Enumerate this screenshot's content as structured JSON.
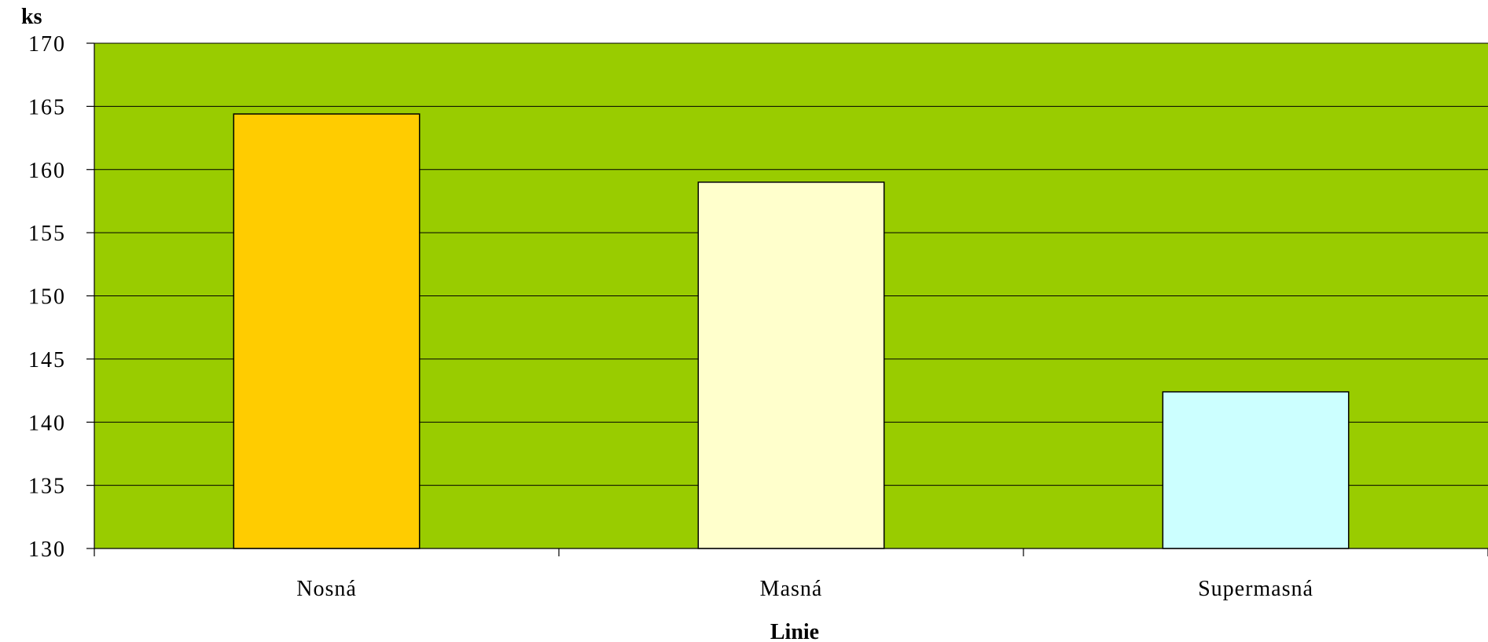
{
  "chart_data": {
    "type": "bar",
    "categories": [
      "Nosná",
      "Masná",
      "Supermasná"
    ],
    "values": [
      164.4,
      159.0,
      142.4
    ],
    "bar_colors": [
      "#FFCC00",
      "#FFFFCC",
      "#CCFFFF"
    ],
    "plot_background": "#99CC00",
    "xlabel": "Linie",
    "ylabel": "ks",
    "ylim": [
      130,
      170
    ],
    "y_ticks": [
      "130",
      "135",
      "140",
      "145",
      "150",
      "155",
      "160",
      "165",
      "170"
    ],
    "grid": true,
    "legend": "none"
  }
}
